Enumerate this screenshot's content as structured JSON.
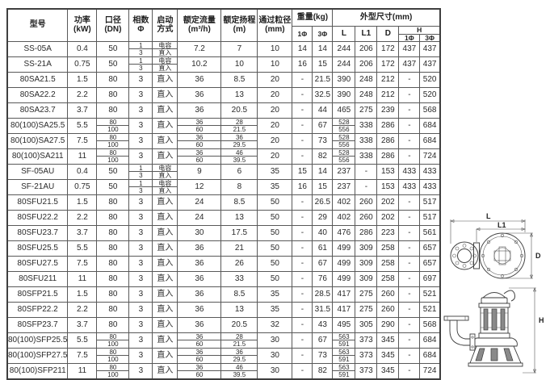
{
  "table": {
    "headers": {
      "model": "型号",
      "power": "功率\n(kW)",
      "dn": "口径\n(DN)",
      "phase": "相数\nΦ",
      "start": "启动\n方式",
      "flow": "额定流量\n(m³/h)",
      "head": "额定扬程\n(m)",
      "particle": "通过粒径\n(mm)",
      "weight": "重量(kg)",
      "dims": "外型尺寸(mm)",
      "w1": "1Φ",
      "w3": "3Φ",
      "L": "L",
      "L1": "L1",
      "D": "D",
      "H": "H",
      "h1": "1Φ",
      "h3": "3Φ"
    },
    "rows": [
      {
        "model": "SS-05A",
        "power": "0.4",
        "dn": "50",
        "phase": [
          "1",
          "3"
        ],
        "start": [
          "电容",
          "直入"
        ],
        "flow": "7.2",
        "head": "7",
        "particle": "10",
        "w1": "14",
        "w3": "14",
        "l": "244",
        "l1": "206",
        "d": "172",
        "h1": "437",
        "h3": "437"
      },
      {
        "model": "SS-21A",
        "power": "0.75",
        "dn": "50",
        "phase": [
          "1",
          "3"
        ],
        "start": [
          "电容",
          "直入"
        ],
        "flow": "10.2",
        "head": "10",
        "particle": "10",
        "w1": "16",
        "w3": "15",
        "l": "244",
        "l1": "206",
        "d": "172",
        "h1": "437",
        "h3": "437"
      },
      {
        "model": "80SA21.5",
        "power": "1.5",
        "dn": "80",
        "phase": "3",
        "start": "直入",
        "flow": "36",
        "head": "8.5",
        "particle": "20",
        "w1": "-",
        "w3": "21.5",
        "l": "390",
        "l1": "248",
        "d": "212",
        "h1": "-",
        "h3": "520"
      },
      {
        "model": "80SA22.2",
        "power": "2.2",
        "dn": "80",
        "phase": "3",
        "start": "直入",
        "flow": "36",
        "head": "13",
        "particle": "20",
        "w1": "-",
        "w3": "32.5",
        "l": "390",
        "l1": "248",
        "d": "212",
        "h1": "-",
        "h3": "520"
      },
      {
        "model": "80SA23.7",
        "power": "3.7",
        "dn": "80",
        "phase": "3",
        "start": "直入",
        "flow": "36",
        "head": "20.5",
        "particle": "20",
        "w1": "-",
        "w3": "44",
        "l": "465",
        "l1": "275",
        "d": "239",
        "h1": "-",
        "h3": "568"
      },
      {
        "model": "80(100)SA25.5",
        "power": "5.5",
        "dn": [
          "80",
          "100"
        ],
        "phase": "3",
        "start": "直入",
        "flow": [
          "36",
          "60"
        ],
        "head": [
          "28",
          "21.5"
        ],
        "particle": "20",
        "w1": "-",
        "w3": "67",
        "l": [
          "528",
          "556"
        ],
        "l1": "338",
        "d": "286",
        "h1": "-",
        "h3": "684"
      },
      {
        "model": "80(100)SA27.5",
        "power": "7.5",
        "dn": [
          "80",
          "100"
        ],
        "phase": "3",
        "start": "直入",
        "flow": [
          "36",
          "60"
        ],
        "head": [
          "36",
          "29.5"
        ],
        "particle": "20",
        "w1": "-",
        "w3": "73",
        "l": [
          "528",
          "556"
        ],
        "l1": "338",
        "d": "286",
        "h1": "-",
        "h3": "684"
      },
      {
        "model": "80(100)SA211",
        "power": "11",
        "dn": [
          "80",
          "100"
        ],
        "phase": "3",
        "start": "直入",
        "flow": [
          "36",
          "60"
        ],
        "head": [
          "46",
          "39.5"
        ],
        "particle": "20",
        "w1": "-",
        "w3": "82",
        "l": [
          "528",
          "556"
        ],
        "l1": "338",
        "d": "286",
        "h1": "-",
        "h3": "724"
      },
      {
        "model": "SF-05AU",
        "power": "0.4",
        "dn": "50",
        "phase": [
          "1",
          "3"
        ],
        "start": [
          "电容",
          "直入"
        ],
        "flow": "9",
        "head": "6",
        "particle": "35",
        "w1": "15",
        "w3": "14",
        "l": "237",
        "l1": "-",
        "d": "153",
        "h1": "433",
        "h3": "433"
      },
      {
        "model": "SF-21AU",
        "power": "0.75",
        "dn": "50",
        "phase": [
          "1",
          "3"
        ],
        "start": [
          "电容",
          "直入"
        ],
        "flow": "12",
        "head": "8",
        "particle": "35",
        "w1": "16",
        "w3": "15",
        "l": "237",
        "l1": "-",
        "d": "153",
        "h1": "433",
        "h3": "433"
      },
      {
        "model": "80SFU21.5",
        "power": "1.5",
        "dn": "80",
        "phase": "3",
        "start": "直入",
        "flow": "24",
        "head": "8.5",
        "particle": "50",
        "w1": "-",
        "w3": "26.5",
        "l": "402",
        "l1": "260",
        "d": "202",
        "h1": "-",
        "h3": "517"
      },
      {
        "model": "80SFU22.2",
        "power": "2.2",
        "dn": "80",
        "phase": "3",
        "start": "直入",
        "flow": "24",
        "head": "13",
        "particle": "50",
        "w1": "-",
        "w3": "29",
        "l": "402",
        "l1": "260",
        "d": "202",
        "h1": "-",
        "h3": "517"
      },
      {
        "model": "80SFU23.7",
        "power": "3.7",
        "dn": "80",
        "phase": "3",
        "start": "直入",
        "flow": "30",
        "head": "17.5",
        "particle": "50",
        "w1": "-",
        "w3": "40",
        "l": "476",
        "l1": "286",
        "d": "223",
        "h1": "-",
        "h3": "561"
      },
      {
        "model": "80SFU25.5",
        "power": "5.5",
        "dn": "80",
        "phase": "3",
        "start": "直入",
        "flow": "36",
        "head": "21",
        "particle": "50",
        "w1": "-",
        "w3": "61",
        "l": "499",
        "l1": "309",
        "d": "258",
        "h1": "-",
        "h3": "657"
      },
      {
        "model": "80SFU27.5",
        "power": "7.5",
        "dn": "80",
        "phase": "3",
        "start": "直入",
        "flow": "36",
        "head": "26",
        "particle": "50",
        "w1": "-",
        "w3": "67",
        "l": "499",
        "l1": "309",
        "d": "258",
        "h1": "-",
        "h3": "657"
      },
      {
        "model": "80SFU211",
        "power": "11",
        "dn": "80",
        "phase": "3",
        "start": "直入",
        "flow": "36",
        "head": "33",
        "particle": "50",
        "w1": "-",
        "w3": "76",
        "l": "499",
        "l1": "309",
        "d": "258",
        "h1": "-",
        "h3": "697"
      },
      {
        "model": "80SFP21.5",
        "power": "1.5",
        "dn": "80",
        "phase": "3",
        "start": "直入",
        "flow": "36",
        "head": "8.5",
        "particle": "35",
        "w1": "-",
        "w3": "28.5",
        "l": "417",
        "l1": "275",
        "d": "260",
        "h1": "-",
        "h3": "521"
      },
      {
        "model": "80SFP22.2",
        "power": "2.2",
        "dn": "80",
        "phase": "3",
        "start": "直入",
        "flow": "36",
        "head": "13",
        "particle": "35",
        "w1": "-",
        "w3": "31.5",
        "l": "417",
        "l1": "275",
        "d": "260",
        "h1": "-",
        "h3": "521"
      },
      {
        "model": "80SFP23.7",
        "power": "3.7",
        "dn": "80",
        "phase": "3",
        "start": "直入",
        "flow": "36",
        "head": "20.5",
        "particle": "32",
        "w1": "-",
        "w3": "43",
        "l": "495",
        "l1": "305",
        "d": "290",
        "h1": "-",
        "h3": "568"
      },
      {
        "model": "80(100)SFP25.5",
        "power": "5.5",
        "dn": [
          "80",
          "100"
        ],
        "phase": "3",
        "start": "直入",
        "flow": [
          "36",
          "60"
        ],
        "head": [
          "28",
          "21.5"
        ],
        "particle": "30",
        "w1": "-",
        "w3": "67",
        "l": [
          "563",
          "591"
        ],
        "l1": "373",
        "d": "345",
        "h1": "-",
        "h3": "684"
      },
      {
        "model": "80(100)SFP27.5",
        "power": "7.5",
        "dn": [
          "80",
          "100"
        ],
        "phase": "3",
        "start": "直入",
        "flow": [
          "36",
          "60"
        ],
        "head": [
          "36",
          "29.5"
        ],
        "particle": "30",
        "w1": "-",
        "w3": "73",
        "l": [
          "563",
          "591"
        ],
        "l1": "373",
        "d": "345",
        "h1": "-",
        "h3": "684"
      },
      {
        "model": "80(100)SFP211",
        "power": "11",
        "dn": [
          "80",
          "100"
        ],
        "phase": "3",
        "start": "直入",
        "flow": [
          "36",
          "60"
        ],
        "head": [
          "46",
          "39.5"
        ],
        "particle": "30",
        "w1": "-",
        "w3": "82",
        "l": [
          "563",
          "591"
        ],
        "l1": "373",
        "d": "345",
        "h1": "-",
        "h3": "724"
      }
    ]
  },
  "diagram": {
    "top_view": {
      "l_label": "L",
      "l1_label": "L1",
      "d_label": "D"
    },
    "side_view": {
      "h_label": "H"
    }
  }
}
